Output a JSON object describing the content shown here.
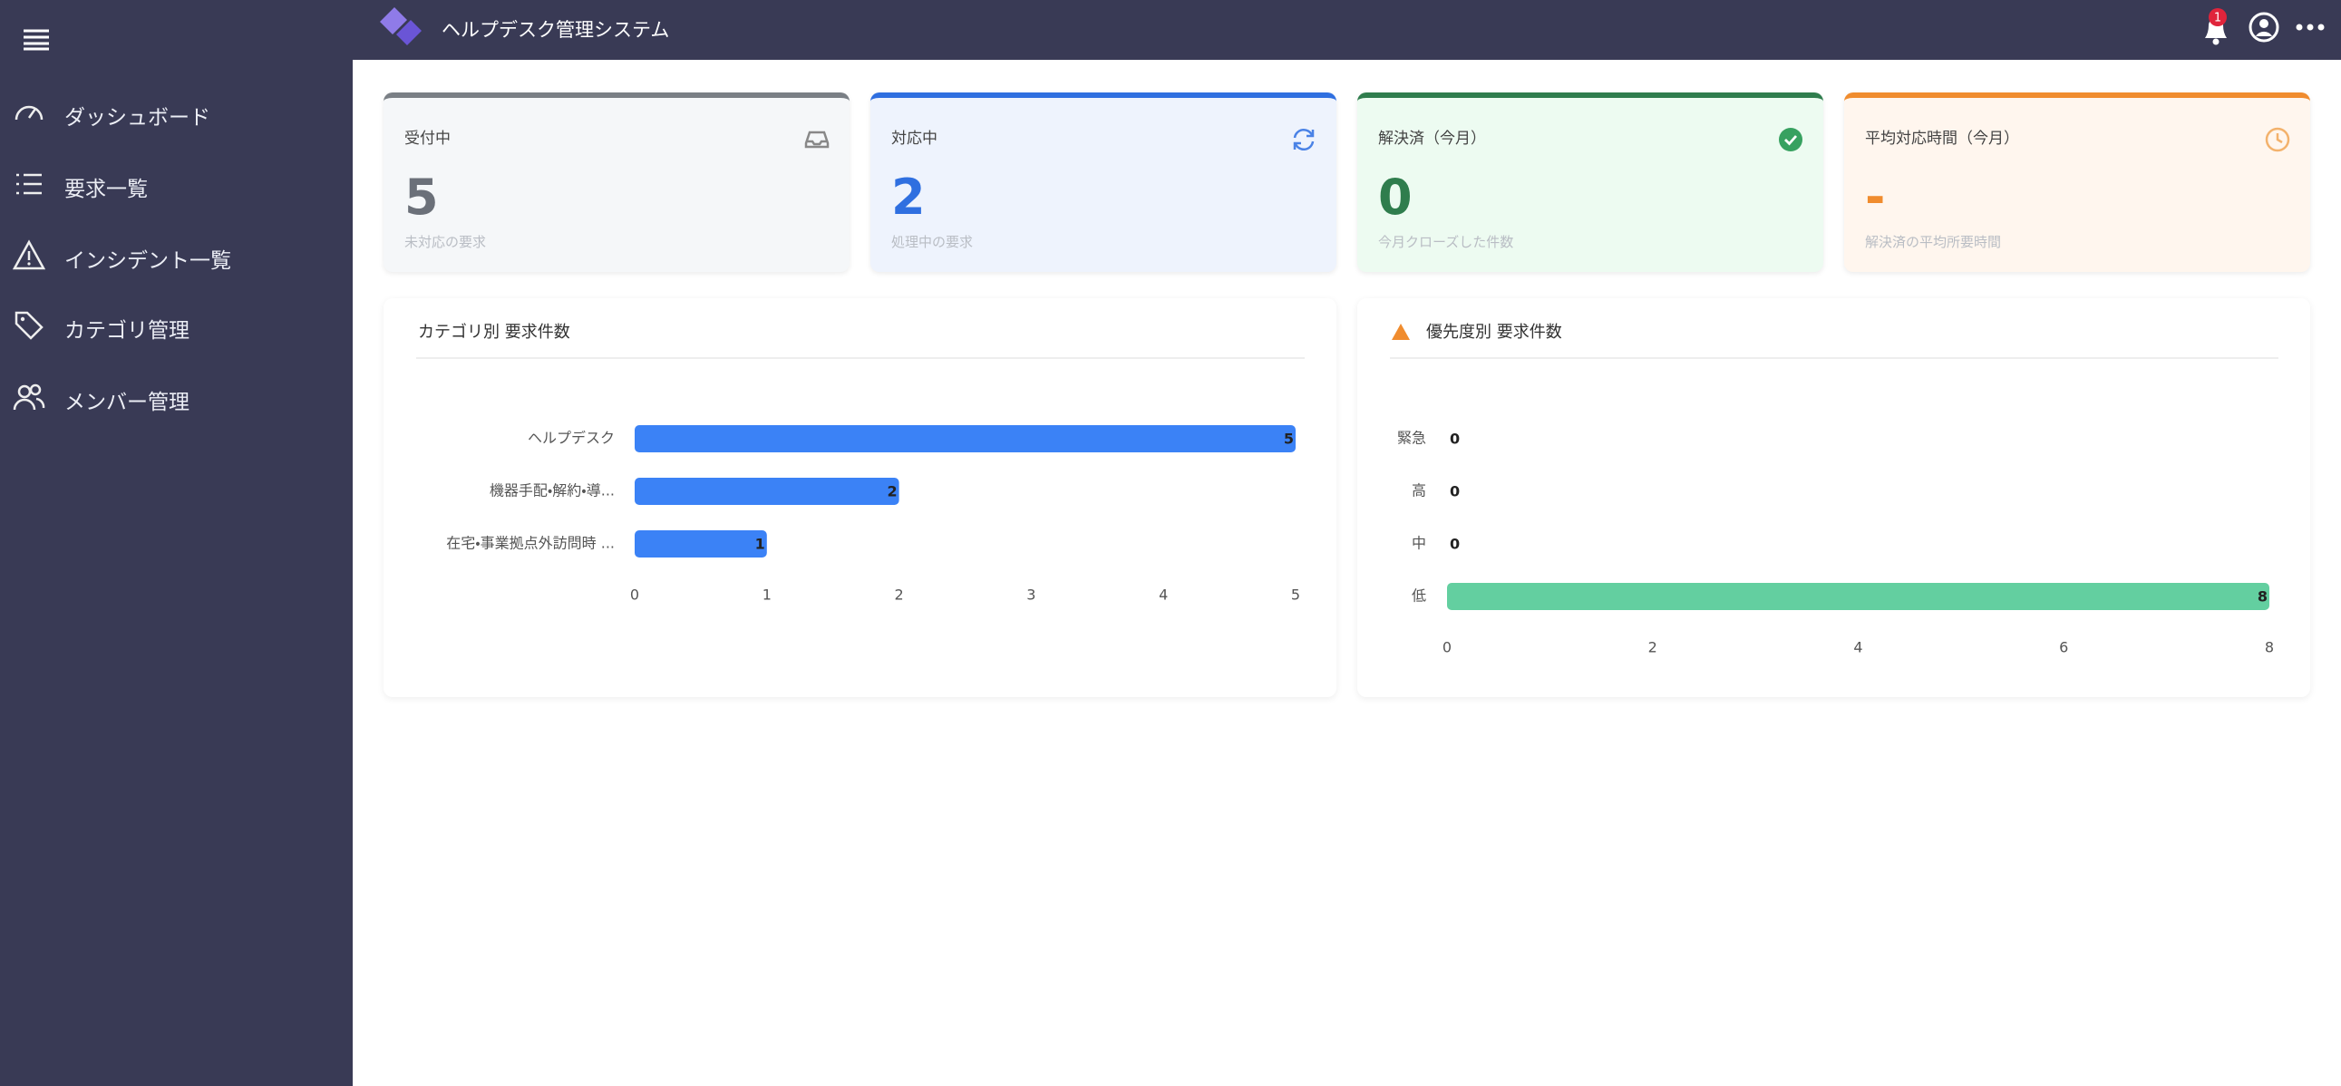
{
  "header": {
    "title": "ヘルプデスク管理システム",
    "notification_count": 1
  },
  "sidebar": {
    "menu": [
      "ダッシュボード",
      "要求一覧",
      "インシデント一覧",
      "カテゴリ管理",
      "メンバー管理"
    ]
  },
  "cards": [
    {
      "label": "受付中",
      "value": 5,
      "caption": "未対応の要求"
    },
    {
      "label": "対応中",
      "value": 2,
      "caption": "処理中の要求"
    },
    {
      "label": "解決済（今月）",
      "value": 0,
      "caption": "今月クローズした件数"
    },
    {
      "label": "平均対応時間（今月）",
      "value": "-",
      "caption": "解決済の平均所要時間"
    }
  ],
  "chart_data": [
    {
      "type": "bar",
      "orientation": "horizontal",
      "title": "カテゴリ別 要求件数",
      "categories": [
        "ヘルプデスク",
        "機器手配・解約・導...",
        "在宅・事業拠点外訪問時 ..."
      ],
      "values": [
        5,
        2,
        1
      ],
      "color": "#3b82f6",
      "xlim": [
        0,
        5
      ],
      "xticks": [
        0,
        1,
        2,
        3,
        4,
        5
      ]
    },
    {
      "type": "bar",
      "orientation": "horizontal",
      "title": "優先度別 要求件数",
      "categories": [
        "緊急",
        "高",
        "中",
        "低"
      ],
      "values": [
        0,
        0,
        0,
        8
      ],
      "color": "#63cfa0",
      "xlim": [
        0,
        8
      ],
      "xticks": [
        0,
        2,
        4,
        6,
        8
      ]
    }
  ]
}
